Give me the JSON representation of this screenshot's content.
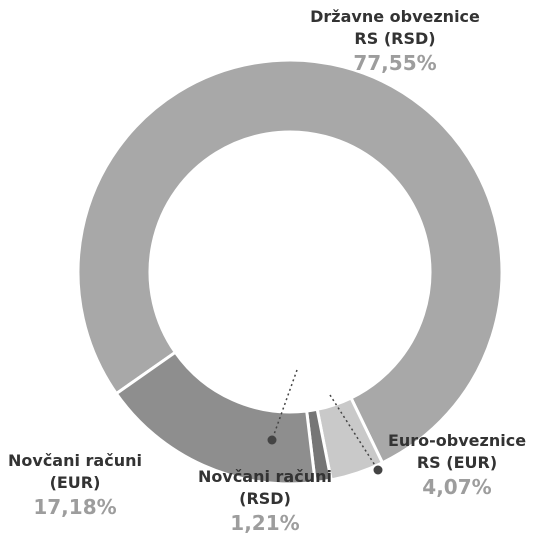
{
  "chart_data": {
    "type": "donut",
    "categories": [
      "Državne obveznice RS (RSD)",
      "Euro-obveznice RS (EUR)",
      "Novčani računi (RSD)",
      "Novčani računi (EUR)"
    ],
    "values": [
      77.55,
      4.07,
      1.21,
      17.18
    ],
    "value_labels": [
      "77,55%",
      "4,07%",
      "1,21%",
      "17,18%"
    ],
    "colors": [
      "#a8a8a8",
      "#c9c9c9",
      "#767676",
      "#8e8e8e"
    ]
  }
}
